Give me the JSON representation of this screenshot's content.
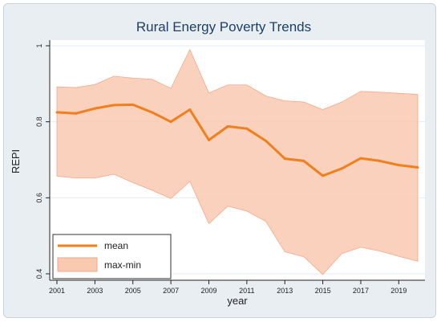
{
  "chart_data": {
    "type": "line",
    "title": "Rural Energy Poverty Trends",
    "xlabel": "year",
    "ylabel": "REPI",
    "x": [
      2001,
      2002,
      2003,
      2004,
      2005,
      2006,
      2007,
      2008,
      2009,
      2010,
      2011,
      2012,
      2013,
      2014,
      2015,
      2016,
      2017,
      2018,
      2019,
      2020
    ],
    "xlim": [
      2001,
      2020
    ],
    "ylim": [
      0.4,
      1.0
    ],
    "x_ticks": [
      2001,
      2003,
      2005,
      2007,
      2009,
      2011,
      2013,
      2015,
      2017,
      2019
    ],
    "y_ticks": [
      0.4,
      0.6,
      0.8,
      1.0
    ],
    "y_tick_labels": [
      "0.4",
      "0.6",
      "0.8",
      "1"
    ],
    "grid": true,
    "legend_position": "bottom-left",
    "series": [
      {
        "name": "mean",
        "kind": "line",
        "color": "#f07f1c",
        "values": [
          0.825,
          0.822,
          0.835,
          0.844,
          0.845,
          0.825,
          0.8,
          0.832,
          0.752,
          0.788,
          0.782,
          0.75,
          0.703,
          0.697,
          0.658,
          0.677,
          0.704,
          0.697,
          0.686,
          0.68
        ]
      },
      {
        "name": "max-min",
        "kind": "band",
        "color": "#f9c9b0",
        "max": [
          0.892,
          0.89,
          0.898,
          0.92,
          0.915,
          0.912,
          0.888,
          0.99,
          0.876,
          0.897,
          0.897,
          0.868,
          0.855,
          0.852,
          0.832,
          0.852,
          0.88,
          0.878,
          0.875,
          0.872
        ],
        "min": [
          0.657,
          0.652,
          0.652,
          0.662,
          0.64,
          0.62,
          0.598,
          0.643,
          0.532,
          0.578,
          0.565,
          0.538,
          0.458,
          0.445,
          0.398,
          0.453,
          0.47,
          0.46,
          0.446,
          0.433
        ]
      }
    ]
  }
}
